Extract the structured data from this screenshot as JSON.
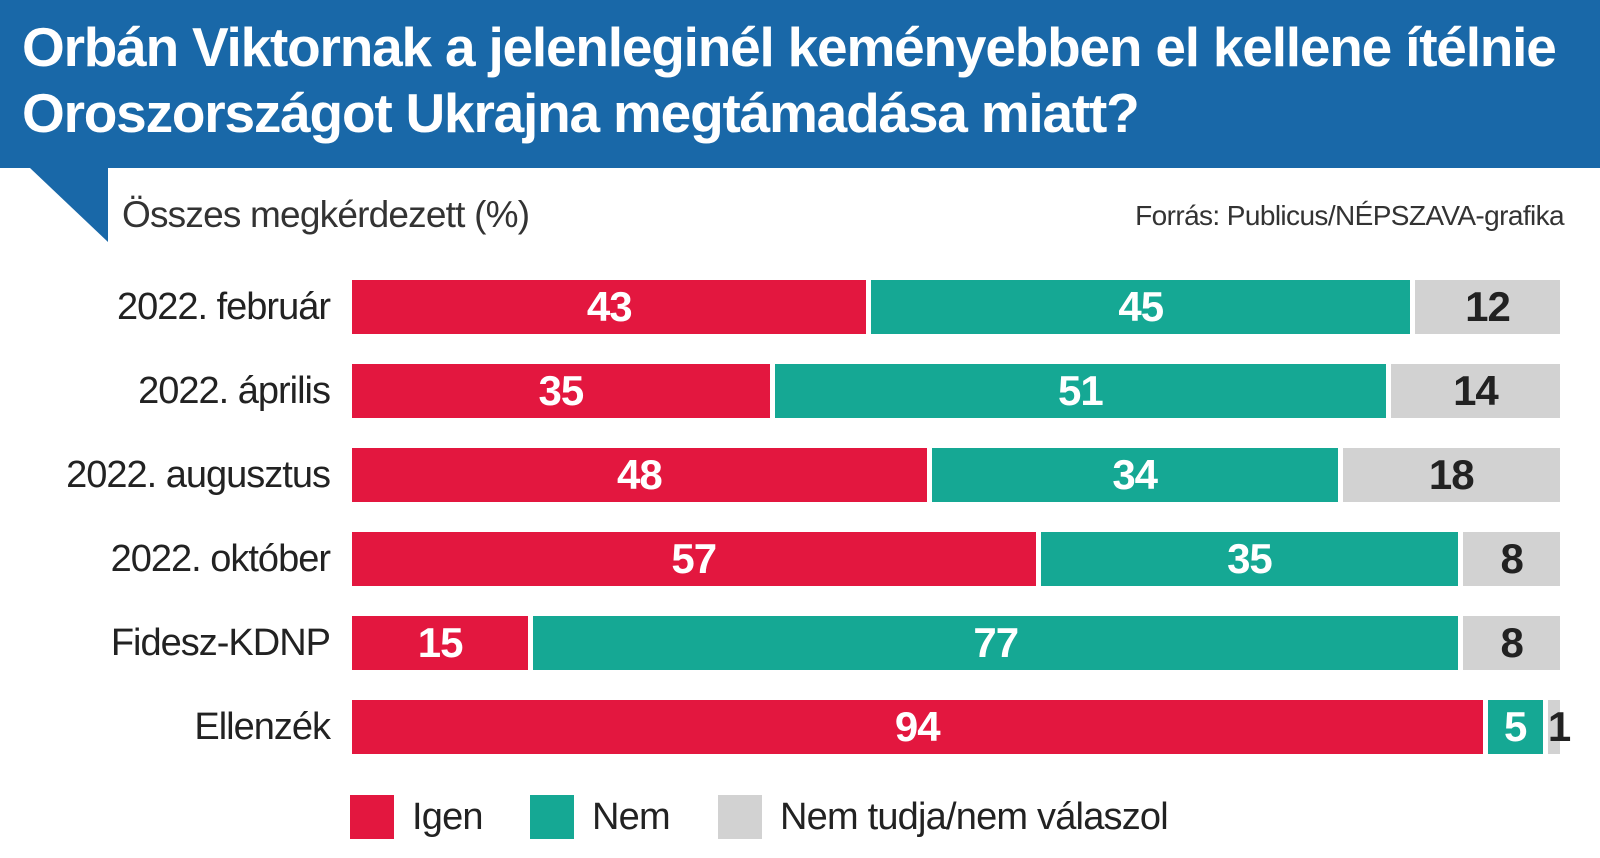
{
  "chart_data": {
    "type": "bar",
    "orientation": "horizontal",
    "stacked": true,
    "title": "Orbán Viktornak a jelenleginél keményebben el kellene ítélnie Oroszországot Ukrajna megtámadása miatt?",
    "subtitle": "Összes megkérdezett (%)",
    "source": "Forrás: Publicus/NÉPSZAVA-grafika",
    "categories": [
      "2022. február",
      "2022. április",
      "2022. augusztus",
      "2022. október",
      "Fidesz-KDNP",
      "Ellenzék"
    ],
    "series": [
      {
        "name": "Igen",
        "color": "#e3173f",
        "values": [
          43,
          35,
          48,
          57,
          15,
          94
        ]
      },
      {
        "name": "Nem",
        "color": "#15a894",
        "values": [
          45,
          51,
          34,
          35,
          77,
          5
        ]
      },
      {
        "name": "Nem tudja/nem válaszol",
        "color": "#d2d2d2",
        "values": [
          12,
          14,
          18,
          8,
          8,
          1
        ]
      }
    ],
    "xlim": [
      0,
      100
    ],
    "grid": false,
    "legend": "bottom"
  },
  "colors": {
    "header": "#1968a8"
  }
}
